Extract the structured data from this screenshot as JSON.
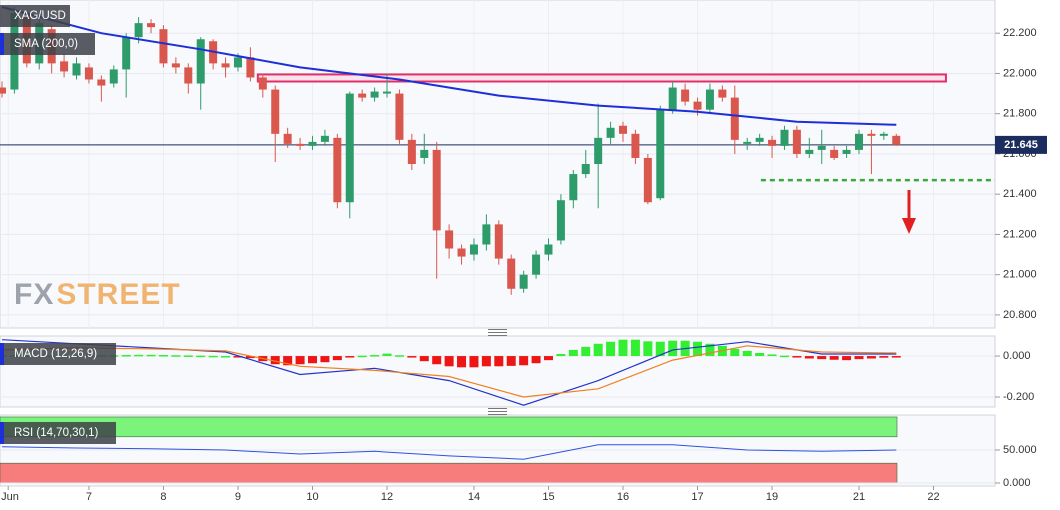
{
  "chart_data": [
    {
      "type": "candlestick",
      "title": "XAG/USD",
      "up_color": "#2e9c6a",
      "down_color": "#d9574c",
      "open": [
        21.93,
        21.92,
        22.3,
        22.05,
        22.22,
        22.06,
        21.99,
        22.03,
        21.97,
        21.95,
        22.02,
        22.18,
        22.25,
        22.22,
        22.05,
        22.03,
        21.95,
        22.16,
        22.05,
        22.03,
        22.08,
        21.98,
        21.92,
        21.7,
        21.65,
        21.64,
        21.66,
        21.68,
        21.36,
        21.9,
        21.88,
        21.9,
        21.9,
        21.67,
        21.58,
        21.62,
        21.22,
        21.13,
        21.1,
        21.15,
        21.25,
        21.08,
        20.93,
        21.0,
        21.1,
        21.17,
        21.37,
        21.5,
        21.55,
        21.68,
        21.74,
        21.7,
        21.58,
        21.38,
        21.82,
        21.92,
        21.86,
        21.82,
        21.92,
        21.88,
        21.65,
        21.66,
        21.67,
        21.64,
        21.72,
        21.6,
        21.62,
        21.62,
        21.6,
        21.62,
        21.7,
        21.69,
        21.69
      ],
      "high": [
        21.96,
        22.33,
        22.31,
        22.28,
        22.24,
        22.1,
        22.08,
        22.05,
        21.99,
        22.04,
        22.2,
        22.28,
        22.27,
        22.24,
        22.08,
        22.05,
        22.18,
        22.17,
        22.08,
        22.1,
        22.13,
        22.0,
        21.94,
        21.73,
        21.68,
        21.69,
        21.72,
        21.7,
        21.91,
        21.92,
        21.93,
        22.0,
        21.92,
        21.7,
        21.7,
        21.66,
        21.25,
        21.15,
        21.18,
        21.3,
        21.27,
        21.1,
        21.02,
        21.12,
        21.18,
        21.4,
        21.52,
        21.62,
        21.85,
        21.76,
        21.76,
        21.72,
        21.6,
        21.84,
        21.96,
        21.95,
        21.88,
        21.95,
        21.94,
        21.94,
        21.68,
        21.7,
        21.69,
        21.74,
        21.74,
        21.68,
        21.72,
        21.64,
        21.64,
        21.72,
        21.72,
        21.71,
        21.7
      ],
      "low": [
        21.88,
        21.9,
        22.03,
        22.02,
        22.0,
        21.98,
        21.97,
        21.95,
        21.86,
        21.93,
        21.88,
        22.15,
        22.2,
        22.03,
        22.0,
        21.9,
        21.82,
        22.02,
        21.98,
        22.01,
        21.96,
        21.88,
        21.56,
        21.63,
        21.62,
        21.62,
        21.64,
        21.33,
        21.28,
        21.86,
        21.86,
        21.88,
        21.65,
        21.52,
        21.55,
        20.98,
        21.08,
        21.05,
        21.07,
        21.12,
        21.05,
        20.9,
        20.91,
        20.98,
        21.07,
        21.15,
        21.33,
        21.48,
        21.33,
        21.65,
        21.66,
        21.55,
        21.35,
        21.37,
        21.8,
        21.84,
        21.79,
        21.8,
        21.86,
        21.6,
        21.62,
        21.64,
        21.58,
        21.62,
        21.58,
        21.58,
        21.55,
        21.57,
        21.58,
        21.6,
        21.5,
        21.67,
        21.64
      ],
      "close": [
        21.9,
        22.3,
        22.05,
        22.25,
        22.05,
        22.01,
        22.05,
        21.97,
        21.94,
        22.02,
        22.18,
        22.25,
        22.23,
        22.05,
        22.03,
        21.95,
        22.17,
        22.05,
        22.03,
        22.08,
        21.98,
        21.92,
        21.7,
        21.65,
        21.64,
        21.66,
        21.69,
        21.36,
        21.9,
        21.88,
        21.91,
        21.91,
        21.67,
        21.55,
        21.62,
        21.22,
        21.13,
        21.09,
        21.15,
        21.25,
        21.08,
        20.93,
        21.0,
        21.1,
        21.15,
        21.37,
        21.5,
        21.55,
        21.68,
        21.73,
        21.7,
        21.58,
        21.36,
        21.82,
        21.93,
        21.86,
        21.82,
        21.92,
        21.88,
        21.67,
        21.66,
        21.68,
        21.64,
        21.72,
        21.6,
        21.62,
        21.64,
        21.58,
        21.62,
        21.7,
        21.69,
        21.7,
        21.645
      ],
      "series": [
        {
          "name": "SMA (200,0)",
          "color": "#1d2fd8",
          "x": [
            0,
            8,
            16,
            24,
            32,
            40,
            48,
            56,
            64,
            72
          ],
          "values": [
            22.33,
            22.2,
            22.12,
            22.03,
            21.97,
            21.89,
            21.84,
            21.81,
            21.76,
            21.745
          ]
        }
      ],
      "resistance_zone": {
        "low": 21.96,
        "high": 21.995,
        "from": 20.6,
        "to": 76,
        "color": "#e0306a"
      },
      "support_line": {
        "value": 21.47,
        "from": 61.1,
        "color": "#3aa83a"
      },
      "last_price": {
        "value": 21.645,
        "label": "21.645",
        "color": "#1b2d5e"
      },
      "logo": {
        "prefix": "FX",
        "suffix": "STREET"
      },
      "xlim": [
        -0.16,
        79.95
      ],
      "xticks": [
        {
          "value": 0.5,
          "label": "Jun"
        },
        {
          "value": 7,
          "label": "7"
        },
        {
          "value": 13,
          "label": "8"
        },
        {
          "value": 19,
          "label": "9"
        },
        {
          "value": 25,
          "label": "10"
        },
        {
          "value": 31,
          "label": "12"
        },
        {
          "value": 38,
          "label": "14"
        },
        {
          "value": 44,
          "label": "15"
        },
        {
          "value": 50,
          "label": "16"
        },
        {
          "value": 56,
          "label": "17"
        },
        {
          "value": 62,
          "label": "19"
        },
        {
          "value": 69,
          "label": "21"
        },
        {
          "value": 75,
          "label": "22"
        }
      ],
      "ylim": [
        20.735,
        22.365
      ],
      "yticks": [
        {
          "value": 20.8,
          "label": "20.800"
        },
        {
          "value": 21.0,
          "label": "21.000"
        },
        {
          "value": 21.2,
          "label": "21.200"
        },
        {
          "value": 21.4,
          "label": "21.400"
        },
        {
          "value": 21.6,
          "label": "21.600"
        },
        {
          "value": 21.8,
          "label": "21.800"
        },
        {
          "value": 22.0,
          "label": "22.000"
        },
        {
          "value": 22.2,
          "label": "22.200"
        }
      ],
      "grid": true
    },
    {
      "type": "macd",
      "title": "MACD (12,26,9)",
      "histogram": {
        "up_color": "#33ee33",
        "down_color": "#ee1515",
        "values": [
          0.005,
          0.004,
          0.003,
          0.002,
          0.002,
          0.001,
          0.002,
          0.003,
          0.004,
          0.004,
          0.005,
          0.006,
          0.006,
          0.005,
          0.004,
          0.003,
          0.002,
          0.001,
          0,
          -0.002,
          -0.01,
          -0.025,
          -0.04,
          -0.045,
          -0.04,
          -0.035,
          -0.03,
          -0.02,
          -0.005,
          0.002,
          0.005,
          0.012,
          0.004,
          -0.006,
          -0.025,
          -0.04,
          -0.05,
          -0.055,
          -0.055,
          -0.05,
          -0.05,
          -0.048,
          -0.045,
          -0.035,
          -0.02,
          0.01,
          0.03,
          0.045,
          0.06,
          0.07,
          0.08,
          0.08,
          0.072,
          0.07,
          0.075,
          0.075,
          0.07,
          0.06,
          0.05,
          0.035,
          0.025,
          0.015,
          0.008,
          0.002,
          -0.005,
          -0.012,
          -0.015,
          -0.018,
          -0.02,
          -0.015,
          -0.012,
          -0.008,
          -0.006
        ]
      },
      "lines": [
        {
          "color": "#2233cc",
          "x": [
            0,
            6,
            12,
            18,
            24,
            30,
            36,
            42,
            48,
            54,
            60,
            66,
            72
          ],
          "values": [
            0.08,
            0.06,
            0.04,
            0.02,
            -0.09,
            -0.06,
            -0.12,
            -0.24,
            -0.12,
            0.03,
            0.07,
            0.01,
            0.01
          ]
        },
        {
          "color": "#f08020",
          "x": [
            0,
            6,
            12,
            18,
            24,
            30,
            36,
            42,
            48,
            54,
            60,
            66,
            72
          ],
          "values": [
            0.03,
            0.04,
            0.035,
            0.025,
            -0.05,
            -0.07,
            -0.1,
            -0.2,
            -0.16,
            -0.02,
            0.05,
            0.02,
            0.015
          ]
        }
      ],
      "ylim": [
        -0.249,
        0.098
      ],
      "yticks": [
        {
          "value": 0,
          "label": "0.000"
        },
        {
          "value": -0.2,
          "label": "-0.200"
        }
      ]
    },
    {
      "type": "rsi",
      "title": "RSI (14,70,30,1)",
      "bands": [
        {
          "from": 70,
          "to": 100,
          "color": "#7cf47c"
        },
        {
          "from": 0,
          "to": 30,
          "color": "#f77d7d"
        }
      ],
      "line": {
        "color": "#3050e0",
        "x": [
          0,
          6,
          12,
          18,
          24,
          30,
          36,
          42,
          48,
          54,
          60,
          66,
          72
        ],
        "values": [
          55,
          53,
          52,
          50,
          44,
          48,
          41,
          36,
          58,
          58,
          50,
          48,
          50
        ]
      },
      "ylim": [
        0,
        103
      ],
      "yticks": [
        {
          "value": 50,
          "label": "50.000"
        },
        {
          "value": 0,
          "label": "0.000"
        }
      ]
    }
  ]
}
